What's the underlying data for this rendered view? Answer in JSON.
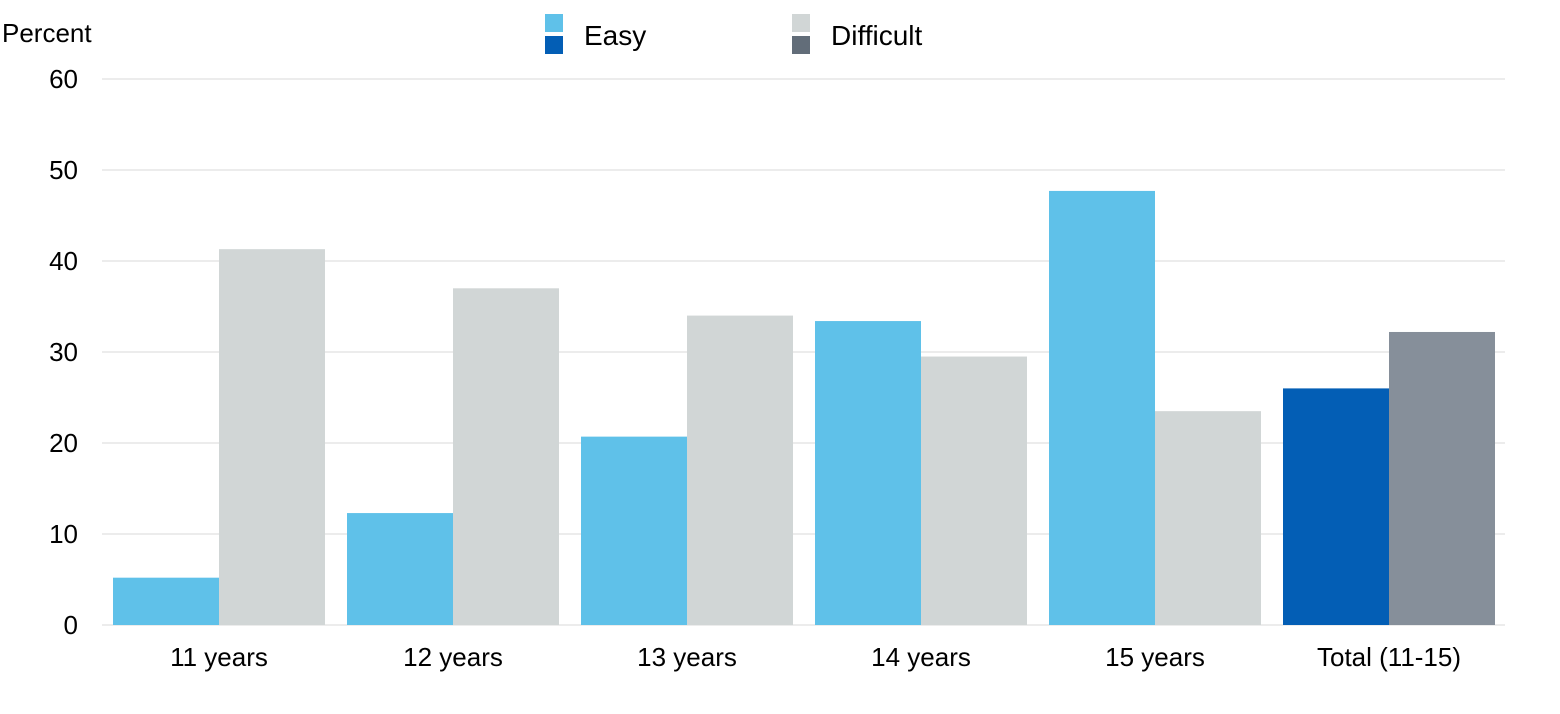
{
  "chart_data": {
    "type": "bar",
    "ylabel": "Percent",
    "ylim": [
      0,
      60
    ],
    "yticks": [
      0,
      10,
      20,
      30,
      40,
      50,
      60
    ],
    "grid": true,
    "legend_position": "top-center",
    "categories": [
      "11 years",
      "12 years",
      "13 years",
      "14 years",
      "15 years",
      "Total (11-15)"
    ],
    "series": [
      {
        "name": "Easy",
        "values": [
          5.2,
          12.3,
          20.7,
          33.4,
          47.7,
          26.0
        ],
        "color": "#5FC1E9",
        "total_color": "#035EB5"
      },
      {
        "name": "Difficult",
        "values": [
          41.3,
          37.0,
          34.0,
          29.5,
          23.5,
          32.2
        ],
        "color": "#D1D6D6",
        "total_color": "#868F9A"
      }
    ],
    "legend_swatches": {
      "Easy": [
        "#5FC1E9",
        "#035EB5"
      ],
      "Difficult": [
        "#D1D6D6",
        "#626D79"
      ]
    },
    "gridline_color": "#D9D9D9"
  }
}
